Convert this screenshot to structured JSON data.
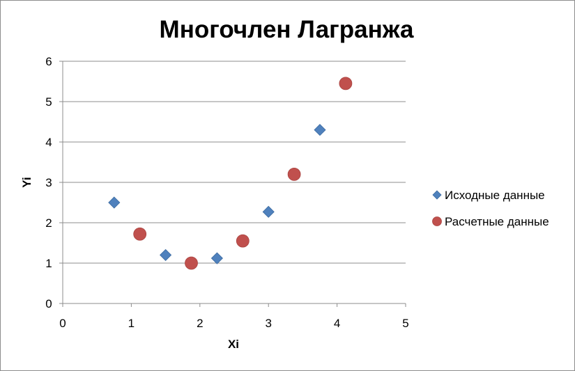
{
  "chart_data": {
    "type": "scatter",
    "title": "Многочлен Лагранжа",
    "xlabel": "Xi",
    "ylabel": "Yi",
    "xlim": [
      0,
      5
    ],
    "ylim": [
      0,
      6
    ],
    "x_ticks": [
      "0",
      "1",
      "2",
      "3",
      "4",
      "5"
    ],
    "y_ticks": [
      "0",
      "1",
      "2",
      "3",
      "4",
      "5",
      "6"
    ],
    "grid": "horizontal",
    "legend_position": "right",
    "series": [
      {
        "name": "Исходные данные",
        "marker": "diamond",
        "color": "#4F81BD",
        "points": [
          {
            "x": 0.75,
            "y": 2.5
          },
          {
            "x": 1.5,
            "y": 1.2
          },
          {
            "x": 2.25,
            "y": 1.12
          },
          {
            "x": 3.0,
            "y": 2.27
          },
          {
            "x": 3.75,
            "y": 4.3
          }
        ]
      },
      {
        "name": "Расчетные данные",
        "marker": "circle",
        "color": "#C0504D",
        "points": [
          {
            "x": 1.125,
            "y": 1.72
          },
          {
            "x": 1.875,
            "y": 1.0
          },
          {
            "x": 2.625,
            "y": 1.55
          },
          {
            "x": 3.375,
            "y": 3.2
          },
          {
            "x": 4.125,
            "y": 5.45
          }
        ]
      }
    ]
  }
}
